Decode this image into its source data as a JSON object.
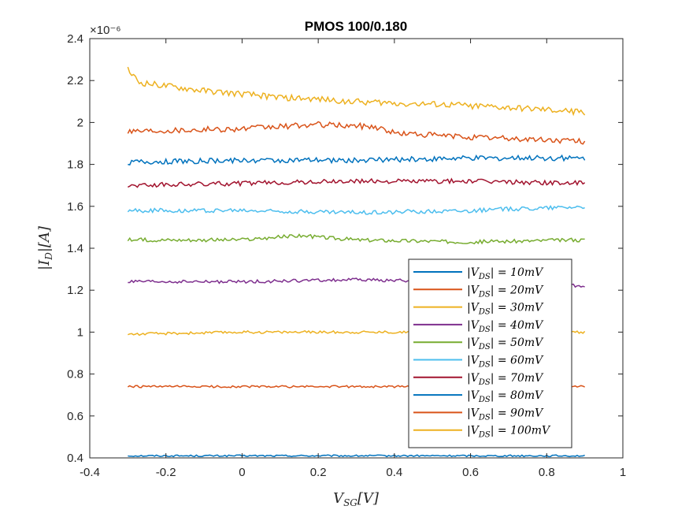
{
  "chart_data": {
    "type": "line",
    "title": "PMOS 100/0.180",
    "xlabel": "V_SG[V]",
    "ylabel": "|I_D|[A]",
    "y_exponent_label": "×10⁻⁶",
    "y_scale_factor": 1e-06,
    "xlim": [
      -0.4,
      1
    ],
    "ylim": [
      0.4,
      2.4
    ],
    "x_ticks": [
      "-0.4",
      "-0.2",
      "0",
      "0.2",
      "0.4",
      "0.6",
      "0.8",
      "1"
    ],
    "y_ticks": [
      "0.4",
      "0.6",
      "0.8",
      "1",
      "1.2",
      "1.4",
      "1.6",
      "1.8",
      "2",
      "2.2",
      "2.4"
    ],
    "grid": false,
    "legend_position": "bottom-right",
    "x_range": [
      -0.3,
      0.9
    ],
    "series": [
      {
        "name": "|V_DS| = 10mV",
        "color": "#0072BD",
        "points": [
          [
            -0.3,
            0.41
          ],
          [
            0,
            0.41
          ],
          [
            0.3,
            0.41
          ],
          [
            0.6,
            0.41
          ],
          [
            0.9,
            0.41
          ]
        ]
      },
      {
        "name": "|V_DS| = 20mV",
        "color": "#D95319",
        "points": [
          [
            -0.3,
            0.74
          ],
          [
            0,
            0.74
          ],
          [
            0.3,
            0.74
          ],
          [
            0.6,
            0.74
          ],
          [
            0.9,
            0.74
          ]
        ]
      },
      {
        "name": "|V_DS| = 30mV",
        "color": "#EDB120",
        "points": [
          [
            -0.3,
            0.99
          ],
          [
            0,
            1.0
          ],
          [
            0.3,
            1.0
          ],
          [
            0.6,
            1.0
          ],
          [
            0.9,
            1.0
          ]
        ]
      },
      {
        "name": "|V_DS| = 40mV",
        "color": "#7E2F8E",
        "points": [
          [
            -0.3,
            1.24
          ],
          [
            0,
            1.24
          ],
          [
            0.3,
            1.25
          ],
          [
            0.6,
            1.24
          ],
          [
            0.9,
            1.22
          ]
        ]
      },
      {
        "name": "|V_DS| = 50mV",
        "color": "#77AC30",
        "points": [
          [
            -0.3,
            1.44
          ],
          [
            0,
            1.44
          ],
          [
            0.15,
            1.46
          ],
          [
            0.3,
            1.44
          ],
          [
            0.6,
            1.43
          ],
          [
            0.9,
            1.44
          ]
        ]
      },
      {
        "name": "|V_DS| = 60mV",
        "color": "#4DBEEE",
        "points": [
          [
            -0.3,
            1.58
          ],
          [
            0,
            1.58
          ],
          [
            0.3,
            1.57
          ],
          [
            0.6,
            1.58
          ],
          [
            0.9,
            1.6
          ]
        ]
      },
      {
        "name": "|V_DS| = 70mV",
        "color": "#A2142F",
        "points": [
          [
            -0.3,
            1.7
          ],
          [
            0,
            1.71
          ],
          [
            0.3,
            1.72
          ],
          [
            0.6,
            1.72
          ],
          [
            0.9,
            1.71
          ]
        ]
      },
      {
        "name": "|V_DS| = 80mV",
        "color": "#0072BD",
        "points": [
          [
            -0.3,
            1.81
          ],
          [
            0,
            1.82
          ],
          [
            0.3,
            1.82
          ],
          [
            0.6,
            1.83
          ],
          [
            0.9,
            1.83
          ]
        ]
      },
      {
        "name": "|V_DS| = 90mV",
        "color": "#D95319",
        "points": [
          [
            -0.3,
            1.96
          ],
          [
            0,
            1.97
          ],
          [
            0.2,
            1.99
          ],
          [
            0.35,
            1.98
          ],
          [
            0.4,
            1.95
          ],
          [
            0.6,
            1.93
          ],
          [
            0.9,
            1.91
          ]
        ]
      },
      {
        "name": "|V_DS| = 100mV",
        "color": "#EDB120",
        "points": [
          [
            -0.3,
            2.25
          ],
          [
            -0.27,
            2.19
          ],
          [
            -0.1,
            2.15
          ],
          [
            0.1,
            2.12
          ],
          [
            0.3,
            2.1
          ],
          [
            0.6,
            2.08
          ],
          [
            0.9,
            2.05
          ]
        ]
      }
    ]
  }
}
